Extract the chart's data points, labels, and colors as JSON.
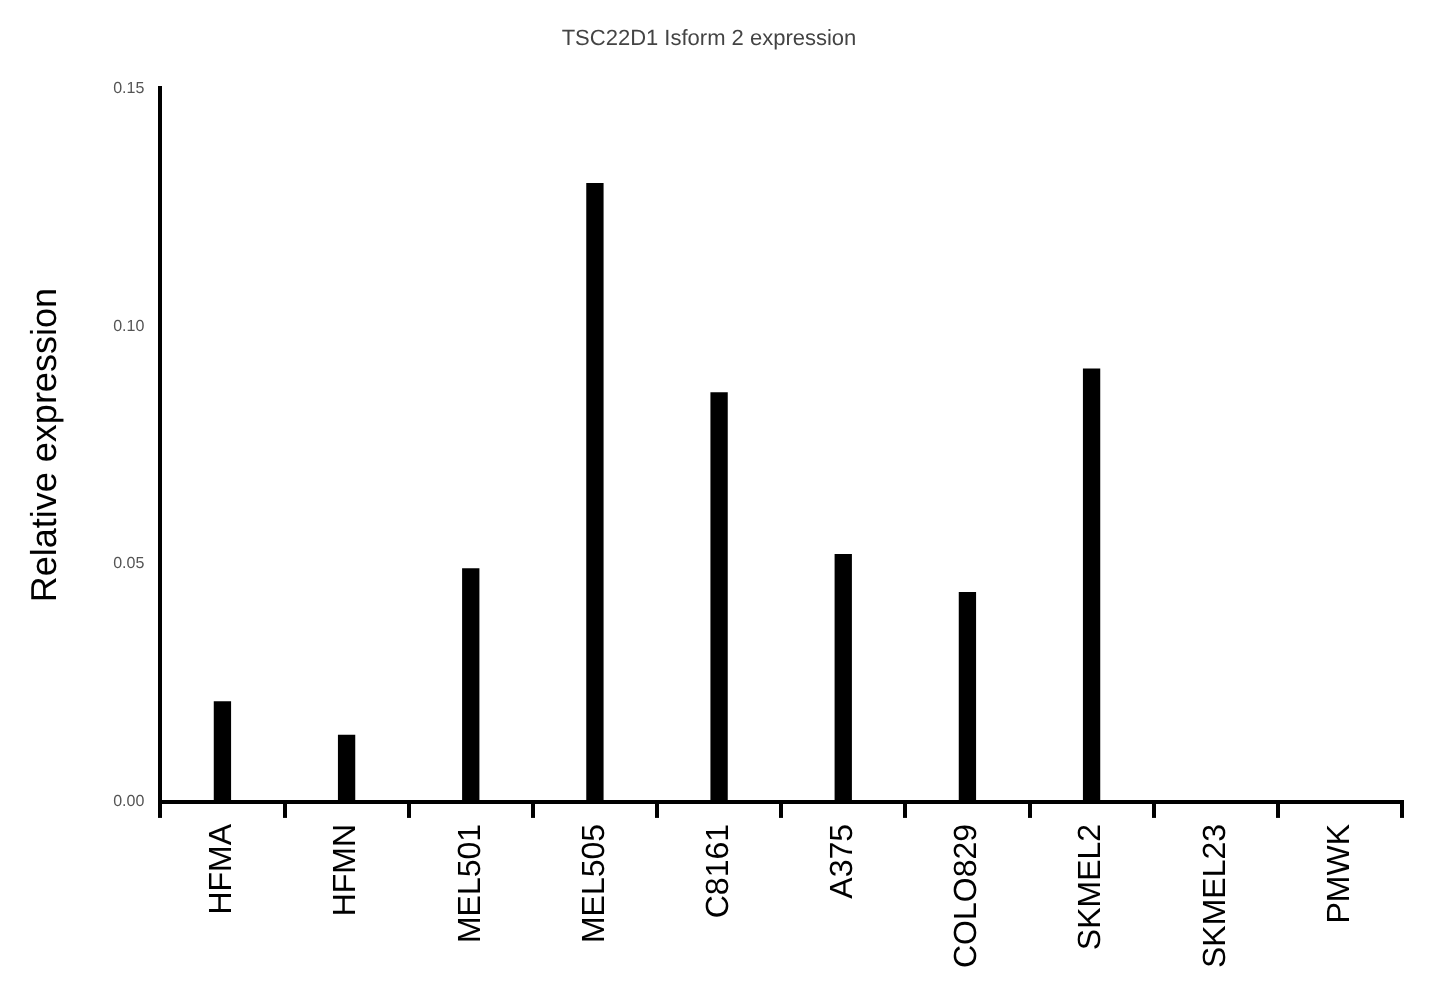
{
  "chart_data": {
    "type": "bar",
    "title": "TSC22D1 Isform 2 expression",
    "ylabel": "Relative expression",
    "categories": [
      "HFMA",
      "HFMN",
      "MEL501",
      "MEL505",
      "C8161",
      "A375",
      "COLO829",
      "SKMEL2",
      "SKMEL23",
      "PMWK"
    ],
    "values": [
      0.021,
      0.014,
      0.049,
      0.13,
      0.086,
      0.052,
      0.044,
      0.091,
      0,
      0
    ],
    "color": "#000000",
    "ylim": [
      0,
      0.15
    ],
    "yticks": [
      {
        "value": 0,
        "label": "0.00"
      },
      {
        "value": 0.05,
        "label": "0.05"
      },
      {
        "value": 0.1,
        "label": "0.10"
      },
      {
        "value": 0.15,
        "label": "0.15"
      }
    ],
    "grid": false,
    "legend": false
  }
}
